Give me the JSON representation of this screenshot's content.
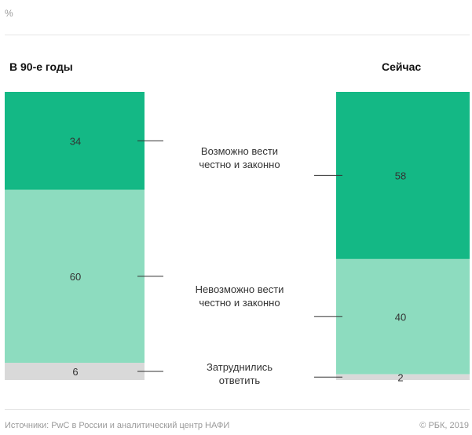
{
  "unit_label": "%",
  "chart_data": {
    "type": "bar",
    "stacked": true,
    "columns": [
      "В 90-е годы",
      "Сейчас"
    ],
    "series": [
      {
        "name": "Возможно вести честно и законно",
        "values": [
          34,
          58
        ],
        "color": "#14b885"
      },
      {
        "name": "Невозможно вести честно и законно",
        "values": [
          60,
          40
        ],
        "color": "#8ddcbf"
      },
      {
        "name": "Затруднились ответить",
        "values": [
          6,
          2
        ],
        "color": "#d9d9d9"
      }
    ],
    "category_label_lines": [
      [
        "Возможно вести",
        "честно и законно"
      ],
      [
        "Невозможно вести",
        "честно и законно"
      ],
      [
        "Затруднились",
        "ответить"
      ]
    ],
    "ylim": [
      0,
      100
    ]
  },
  "footer": {
    "source": "Источники: PwC в России и аналитический центр НАФИ",
    "copyright": "© РБК, 2019"
  }
}
